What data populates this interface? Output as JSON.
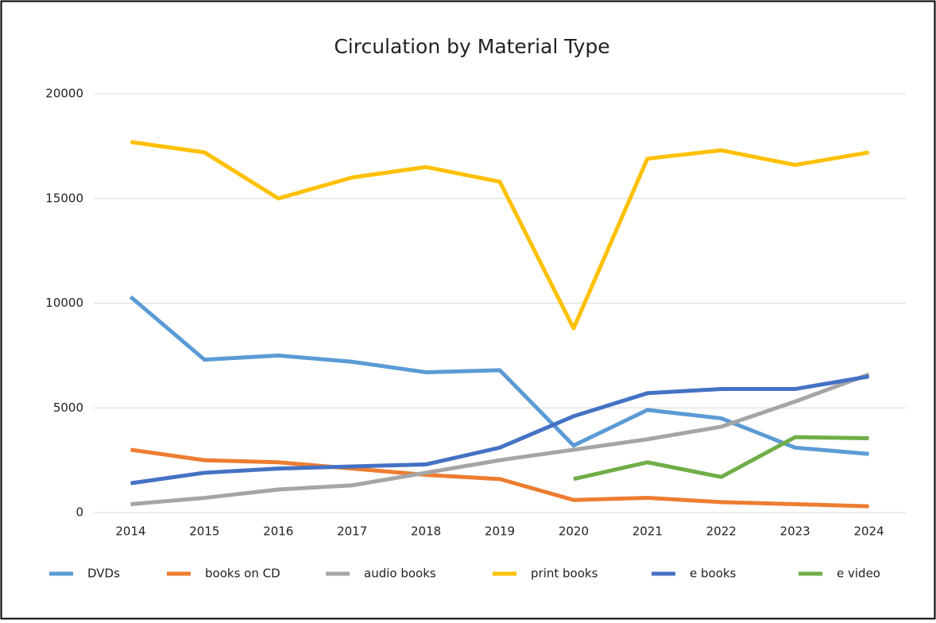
{
  "chart_data": {
    "type": "line",
    "title": "Circulation by Material Type",
    "categories": [
      "2014",
      "2015",
      "2016",
      "2017",
      "2018",
      "2019",
      "2020",
      "2021",
      "2022",
      "2023",
      "2024"
    ],
    "series": [
      {
        "name": "DVDs",
        "color": "#5b9bd5",
        "values": [
          10300,
          7300,
          7500,
          7200,
          6700,
          6800,
          3200,
          4900,
          4500,
          3100,
          2800
        ]
      },
      {
        "name": "books on CD",
        "color": "#ed7d31",
        "values": [
          3000,
          2500,
          2400,
          2100,
          1800,
          1600,
          600,
          700,
          500,
          400,
          300
        ]
      },
      {
        "name": "audio books",
        "color": "#a5a5a5",
        "values": [
          400,
          700,
          1100,
          1300,
          1900,
          2500,
          3000,
          3500,
          4100,
          5300,
          6600
        ]
      },
      {
        "name": "print books",
        "color": "#ffc000",
        "values": [
          17700,
          17200,
          15000,
          16000,
          16500,
          15800,
          8800,
          16900,
          17300,
          16600,
          17200
        ]
      },
      {
        "name": "e books",
        "color": "#4472c4",
        "values": [
          1400,
          1900,
          2100,
          2200,
          2300,
          3100,
          4600,
          5700,
          5900,
          5900,
          6500
        ]
      },
      {
        "name": "e video",
        "color": "#70ad47",
        "values": [
          null,
          null,
          null,
          null,
          null,
          null,
          1600,
          2400,
          1700,
          3600,
          3550
        ]
      }
    ],
    "ylim": [
      0,
      20000
    ],
    "yticks": [
      0,
      5000,
      10000,
      15000,
      20000
    ],
    "grid": true,
    "legend": "bottom"
  }
}
